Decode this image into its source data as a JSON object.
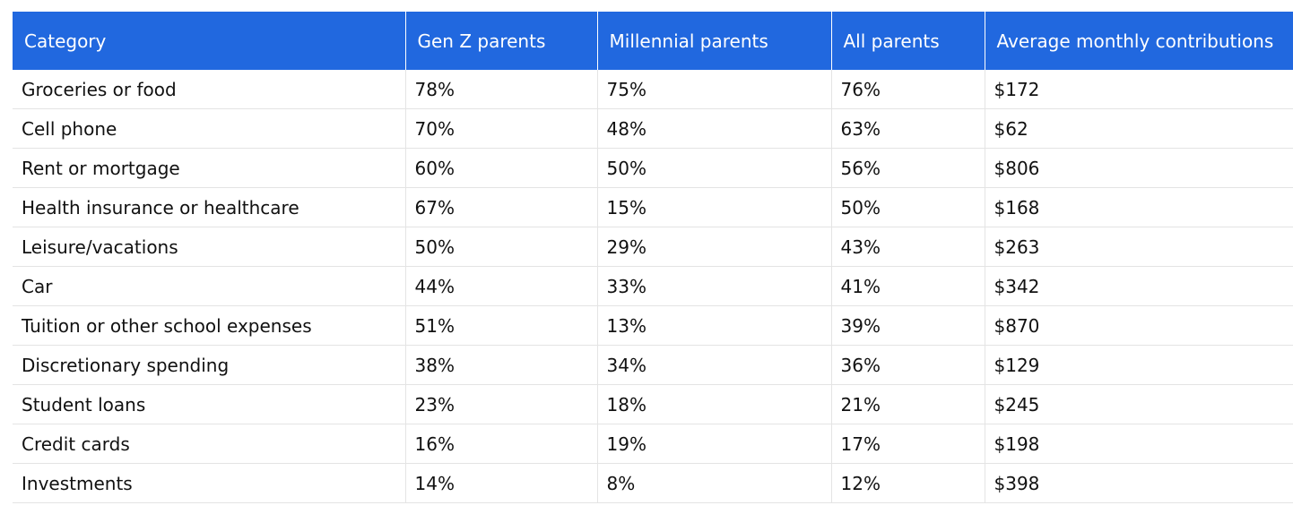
{
  "chart_data": {
    "type": "table",
    "columns": [
      "Category",
      "Gen Z parents",
      "Millennial parents",
      "All parents",
      "Average monthly contributions"
    ],
    "rows": [
      [
        "Groceries or food",
        "78%",
        "75%",
        "76%",
        "$172"
      ],
      [
        "Cell phone",
        "70%",
        "48%",
        "63%",
        "$62"
      ],
      [
        "Rent or mortgage",
        "60%",
        "50%",
        "56%",
        "$806"
      ],
      [
        "Health insurance or healthcare",
        "67%",
        "15%",
        "50%",
        "$168"
      ],
      [
        "Leisure/vacations",
        "50%",
        "29%",
        "43%",
        "$263"
      ],
      [
        "Car",
        "44%",
        "33%",
        "41%",
        "$342"
      ],
      [
        "Tuition or other school expenses",
        "51%",
        "13%",
        "39%",
        "$870"
      ],
      [
        "Discretionary spending",
        "38%",
        "34%",
        "36%",
        "$129"
      ],
      [
        "Student loans",
        "23%",
        "18%",
        "21%",
        "$245"
      ],
      [
        "Credit cards",
        "16%",
        "19%",
        "17%",
        "$198"
      ],
      [
        "Investments",
        "14%",
        "8%",
        "12%",
        "$398"
      ]
    ],
    "header_color": "#2168df"
  }
}
